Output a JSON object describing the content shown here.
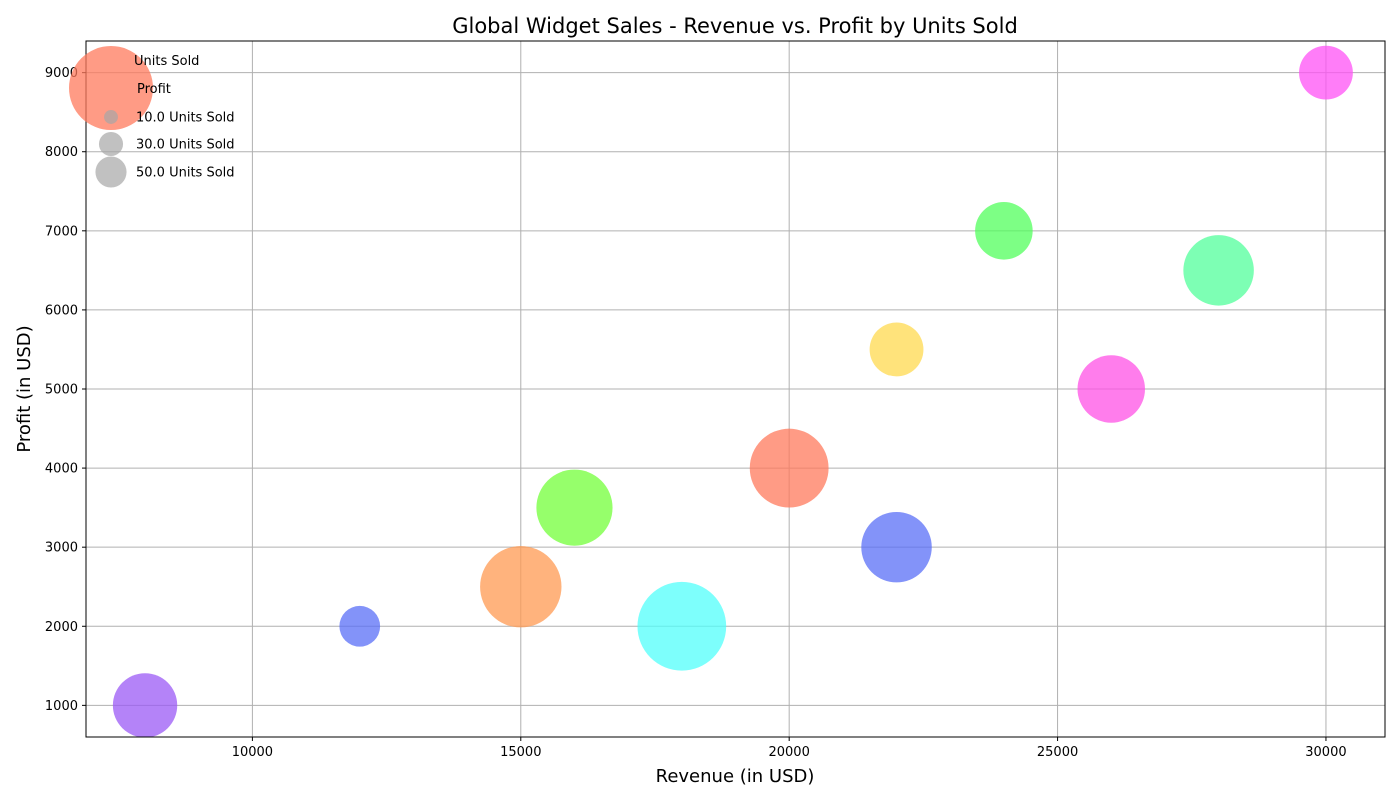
{
  "chart_data": {
    "type": "scatter",
    "title": "Global Widget Sales - Revenue vs. Profit by Units Sold",
    "xlabel": "Revenue (in USD)",
    "ylabel": "Profit (in USD)",
    "xlim": [
      6900,
      31100
    ],
    "ylim": [
      600,
      9400
    ],
    "xticks": [
      10000,
      15000,
      20000,
      25000,
      30000
    ],
    "yticks": [
      1000,
      2000,
      3000,
      4000,
      5000,
      6000,
      7000,
      8000,
      9000
    ],
    "grid": true,
    "size_variable": "Units Sold",
    "points": [
      {
        "revenue": 8000,
        "profit": 1000,
        "units_sold": 50,
        "color": "#9b59f6"
      },
      {
        "revenue": 12000,
        "profit": 2000,
        "units_sold": 20,
        "color": "#5a6ff7"
      },
      {
        "revenue": 15000,
        "profit": 2500,
        "units_sold": 80,
        "color": "#ff9a52"
      },
      {
        "revenue": 16000,
        "profit": 3500,
        "units_sold": 70,
        "color": "#73ff3a"
      },
      {
        "revenue": 18000,
        "profit": 2000,
        "units_sold": 95,
        "color": "#52fffb"
      },
      {
        "revenue": 20000,
        "profit": 4000,
        "units_sold": 75,
        "color": "#ff7a5c"
      },
      {
        "revenue": 22000,
        "profit": 3000,
        "units_sold": 60,
        "color": "#5a6ff7"
      },
      {
        "revenue": 22000,
        "profit": 5500,
        "units_sold": 35,
        "color": "#ffd94f"
      },
      {
        "revenue": 24000,
        "profit": 7000,
        "units_sold": 40,
        "color": "#52ff5c"
      },
      {
        "revenue": 26000,
        "profit": 5000,
        "units_sold": 55,
        "color": "#ff52e6"
      },
      {
        "revenue": 28000,
        "profit": 6500,
        "units_sold": 60,
        "color": "#52ff9b"
      },
      {
        "revenue": 30000,
        "profit": 9000,
        "units_sold": 35,
        "color": "#ff52f5"
      }
    ],
    "legend": {
      "placement": "top-left",
      "title": "Units Sold",
      "series_label": "Profit",
      "series_color": "#ff7a5c",
      "size_entries": [
        {
          "label": "10.0 Units Sold",
          "units_sold": 10
        },
        {
          "label": "30.0 Units Sold",
          "units_sold": 30
        },
        {
          "label": "50.0 Units Sold",
          "units_sold": 50
        }
      ],
      "size_entry_color": "#a6a6a6"
    }
  }
}
